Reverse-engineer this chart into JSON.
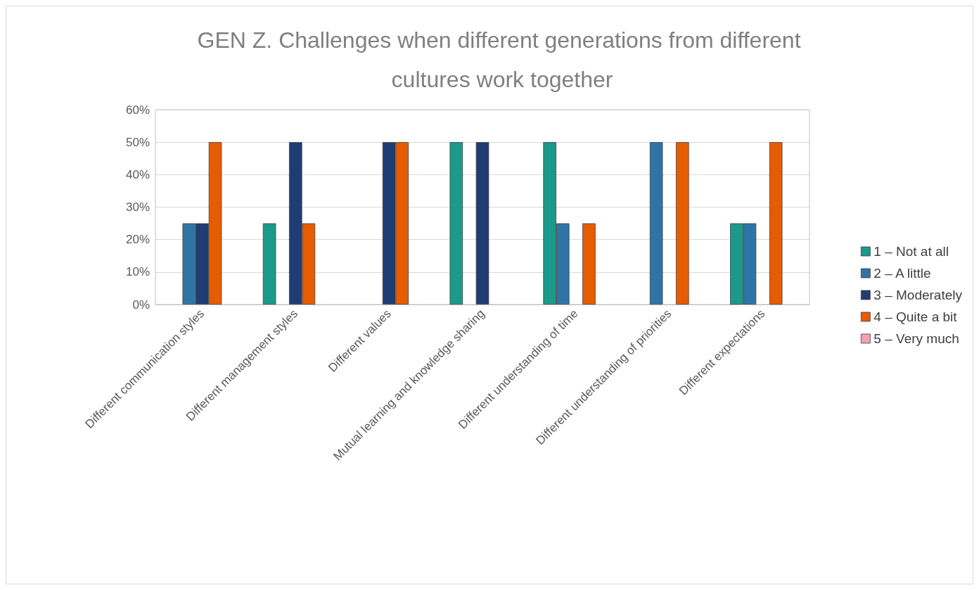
{
  "chart_data": {
    "type": "bar",
    "title": "GEN Z. Challenges when different generations from different cultures work together",
    "categories": [
      "Different communication styles",
      "Different management styles",
      "Different values",
      "Mutual learning and knowledge sharing",
      "Different understanding of time",
      "Different understanding of priorities",
      "Different expectations"
    ],
    "series": [
      {
        "name": "1 – Not at all",
        "color": "#1a9a8a",
        "values": [
          0,
          25,
          0,
          50,
          50,
          0,
          25
        ]
      },
      {
        "name": "2 – A little",
        "color": "#2e75a6",
        "values": [
          25,
          0,
          0,
          0,
          25,
          50,
          25
        ]
      },
      {
        "name": "3 – Moderately",
        "color": "#1f3c73",
        "values": [
          25,
          50,
          50,
          50,
          0,
          0,
          0
        ]
      },
      {
        "name": "4 – Quite a bit",
        "color": "#e65c00",
        "values": [
          50,
          25,
          50,
          0,
          25,
          50,
          50
        ]
      },
      {
        "name": "5 – Very much",
        "color": "#f4a0b0",
        "values": [
          0,
          0,
          0,
          0,
          0,
          0,
          0
        ]
      }
    ],
    "ylim": [
      0,
      60
    ],
    "yticks": [
      {
        "value": 0,
        "label": "0%"
      },
      {
        "value": 10,
        "label": "10%"
      },
      {
        "value": 20,
        "label": "20%"
      },
      {
        "value": 30,
        "label": "30%"
      },
      {
        "value": 40,
        "label": "40%"
      },
      {
        "value": 50,
        "label": "50%"
      },
      {
        "value": 60,
        "label": "60%"
      }
    ],
    "grid": "y",
    "legend": "right"
  }
}
